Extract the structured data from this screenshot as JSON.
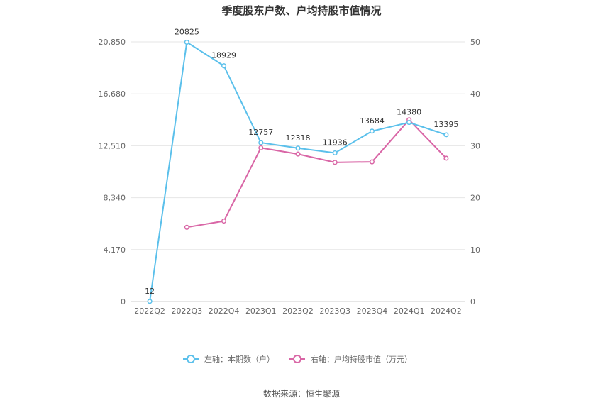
{
  "chart_data": {
    "type": "line",
    "title": "季度股东户数、户均持股市值情况",
    "categories": [
      "2022Q2",
      "2022Q3",
      "2022Q4",
      "2023Q1",
      "2023Q2",
      "2023Q3",
      "2023Q4",
      "2024Q1",
      "2024Q2"
    ],
    "left_axis": {
      "ticks": [
        "0",
        "4,170",
        "8,340",
        "12,510",
        "16,680",
        "20,850"
      ],
      "ylim": [
        0,
        20850
      ]
    },
    "right_axis": {
      "ticks": [
        "0",
        "10",
        "20",
        "30",
        "40",
        "50"
      ],
      "ylim": [
        0,
        50
      ]
    },
    "series": [
      {
        "name": "左轴：本期数（户）",
        "axis": "left",
        "color": "#5bc0eb",
        "values": [
          12,
          20825,
          18929,
          12757,
          12318,
          11936,
          13684,
          14380,
          13395
        ],
        "labels": [
          "12",
          "20825",
          "18929",
          "12757",
          "12318",
          "11936",
          "13684",
          "14380",
          "13395"
        ]
      },
      {
        "name": "右轴：户均持股市值（万元）",
        "axis": "right",
        "color": "#d966a6",
        "values": [
          null,
          14.3,
          15.5,
          29.6,
          28.4,
          26.8,
          26.9,
          35.0,
          27.6
        ]
      }
    ],
    "grid": true,
    "legend_position": "bottom"
  },
  "footer": {
    "source": "数据来源：恒生聚源"
  }
}
